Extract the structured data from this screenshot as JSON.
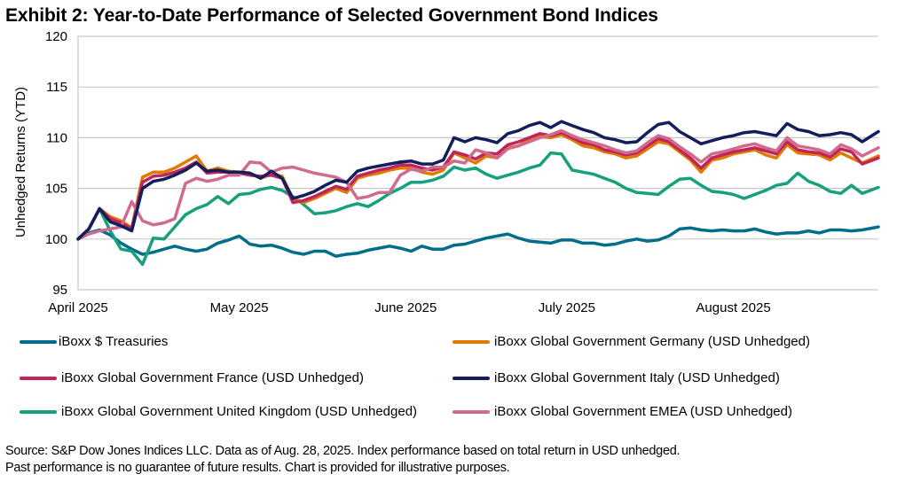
{
  "chart_data": {
    "type": "line",
    "title": "Exhibit 2: Year-to-Date Performance of Selected Government Bond Indices",
    "xlabel": "",
    "ylabel": "Unhedged Returns (YTD)",
    "ylim": [
      95,
      120
    ],
    "yticks": [
      95,
      100,
      105,
      110,
      115,
      120
    ],
    "grid": true,
    "legend_position": "bottom",
    "x_unit": "days since April 1, 2025",
    "xlim": [
      0,
      149
    ],
    "xticks": [
      {
        "day": 0,
        "label": "April 2025"
      },
      {
        "day": 30,
        "label": "May 2025"
      },
      {
        "day": 61,
        "label": "June 2025"
      },
      {
        "day": 91,
        "label": "July 2025"
      },
      {
        "day": 122,
        "label": "August 2025"
      }
    ],
    "x": [
      0,
      2,
      4,
      6,
      8,
      10,
      12,
      14,
      16,
      18,
      20,
      22,
      24,
      26,
      28,
      30,
      32,
      34,
      36,
      38,
      40,
      42,
      44,
      46,
      48,
      50,
      52,
      54,
      56,
      58,
      60,
      62,
      64,
      66,
      68,
      70,
      72,
      74,
      76,
      78,
      80,
      82,
      84,
      86,
      88,
      90,
      92,
      94,
      96,
      98,
      100,
      102,
      104,
      106,
      108,
      110,
      112,
      114,
      116,
      118,
      120,
      122,
      124,
      126,
      128,
      130,
      132,
      134,
      136,
      138,
      140,
      142,
      144,
      146,
      149
    ],
    "series": [
      {
        "name": "iBoxx $ Treasuries",
        "color": "#006E8A",
        "values": [
          100.0,
          100.6,
          100.9,
          100.4,
          99.6,
          99.0,
          98.5,
          98.7,
          99.0,
          99.3,
          99.0,
          98.8,
          99.0,
          99.6,
          99.9,
          100.3,
          99.5,
          99.3,
          99.4,
          99.1,
          98.7,
          98.5,
          98.8,
          98.8,
          98.3,
          98.5,
          98.6,
          98.9,
          99.1,
          99.3,
          99.1,
          98.8,
          99.3,
          99.0,
          99.0,
          99.4,
          99.5,
          99.8,
          100.1,
          100.3,
          100.5,
          100.1,
          99.8,
          99.7,
          99.6,
          99.9,
          99.9,
          99.6,
          99.6,
          99.4,
          99.5,
          99.8,
          100.0,
          99.8,
          99.9,
          100.3,
          101.0,
          101.1,
          100.9,
          100.8,
          100.9,
          100.8,
          100.8,
          101.0,
          100.7,
          100.5,
          100.6,
          100.6,
          100.8,
          100.6,
          100.9,
          100.9,
          100.8,
          100.9,
          101.2
        ]
      },
      {
        "name": "iBoxx Global Government Germany (USD Unhedged)",
        "color": "#E07A00",
        "values": [
          100.0,
          101.0,
          103.0,
          102.2,
          101.8,
          101.1,
          106.1,
          106.6,
          106.6,
          107.0,
          107.6,
          108.2,
          106.7,
          107.0,
          106.7,
          106.6,
          106.5,
          106.0,
          106.4,
          106.2,
          104.0,
          103.6,
          104.0,
          104.5,
          105.0,
          104.6,
          106.0,
          106.3,
          106.5,
          106.8,
          107.0,
          107.0,
          106.6,
          106.4,
          106.8,
          108.5,
          108.0,
          107.5,
          108.2,
          108.0,
          109.0,
          109.2,
          109.8,
          110.1,
          110.0,
          110.3,
          109.8,
          109.2,
          109.0,
          108.6,
          108.4,
          108.0,
          108.2,
          108.9,
          109.6,
          109.4,
          108.6,
          107.8,
          106.6,
          107.8,
          108.0,
          108.4,
          108.6,
          108.8,
          108.3,
          108.0,
          109.3,
          108.5,
          108.4,
          108.3,
          107.8,
          108.5,
          108.0,
          107.5,
          108.2
        ]
      },
      {
        "name": "iBoxx Global Government France (USD Unhedged)",
        "color": "#C0245A",
        "values": [
          100.0,
          101.0,
          103.0,
          102.0,
          101.6,
          101.0,
          105.6,
          106.2,
          106.3,
          106.6,
          107.0,
          107.6,
          106.5,
          106.6,
          106.6,
          106.5,
          106.3,
          106.2,
          106.3,
          106.0,
          103.6,
          103.8,
          104.2,
          104.7,
          105.2,
          104.9,
          106.2,
          106.5,
          106.8,
          107.0,
          107.3,
          107.3,
          107.0,
          106.8,
          107.1,
          108.6,
          108.3,
          107.9,
          108.5,
          108.4,
          109.3,
          109.6,
          110.0,
          110.4,
          110.2,
          110.5,
          110.0,
          109.5,
          109.3,
          108.8,
          108.6,
          108.3,
          108.5,
          109.2,
          109.9,
          109.6,
          108.8,
          108.0,
          107.0,
          108.0,
          108.3,
          108.6,
          108.8,
          109.0,
          108.7,
          108.4,
          109.6,
          108.8,
          108.6,
          108.5,
          108.1,
          108.9,
          108.6,
          107.4,
          108.0
        ]
      },
      {
        "name": "iBoxx Global Government Italy (USD Unhedged)",
        "color": "#131E5C",
        "values": [
          100.0,
          101.0,
          103.0,
          101.7,
          101.3,
          100.8,
          105.0,
          105.7,
          105.9,
          106.3,
          106.8,
          107.5,
          106.7,
          106.8,
          106.6,
          106.6,
          106.5,
          106.0,
          106.7,
          106.0,
          104.0,
          104.3,
          104.7,
          105.3,
          105.8,
          105.6,
          106.7,
          107.0,
          107.2,
          107.4,
          107.6,
          107.7,
          107.4,
          107.4,
          107.8,
          110.0,
          109.6,
          110.0,
          109.8,
          109.5,
          110.4,
          110.7,
          111.2,
          111.5,
          111.0,
          111.6,
          111.2,
          110.8,
          110.5,
          110.0,
          109.8,
          109.5,
          109.6,
          110.5,
          111.3,
          111.5,
          110.6,
          110.0,
          109.4,
          109.7,
          110.0,
          110.2,
          110.5,
          110.6,
          110.4,
          110.2,
          111.4,
          110.8,
          110.6,
          110.2,
          110.3,
          110.5,
          110.3,
          109.6,
          110.6
        ]
      },
      {
        "name": "iBoxx Global Government United Kingdom (USD Unhedged)",
        "color": "#16A07C",
        "values": [
          100.0,
          101.0,
          103.0,
          100.8,
          99.0,
          98.8,
          97.5,
          100.1,
          100.0,
          101.2,
          102.4,
          103.0,
          103.4,
          104.2,
          103.5,
          104.4,
          104.5,
          104.9,
          105.1,
          104.8,
          104.2,
          103.4,
          102.5,
          102.6,
          102.8,
          103.2,
          103.5,
          103.2,
          103.8,
          104.5,
          105.0,
          105.6,
          105.6,
          105.8,
          106.2,
          107.1,
          106.8,
          107.0,
          106.4,
          106.0,
          106.3,
          106.6,
          107.0,
          107.3,
          108.5,
          108.4,
          106.8,
          106.6,
          106.4,
          106.0,
          105.6,
          105.0,
          104.6,
          104.5,
          104.4,
          105.2,
          105.9,
          106.0,
          105.3,
          104.7,
          104.6,
          104.4,
          104.0,
          104.4,
          104.8,
          105.3,
          105.5,
          106.5,
          105.7,
          105.3,
          104.7,
          104.5,
          105.3,
          104.5,
          105.1
        ]
      },
      {
        "name": "iBoxx Global Government EMEA (USD Unhedged)",
        "color": "#D06A8E",
        "values": [
          100.0,
          100.5,
          100.8,
          101.0,
          101.2,
          103.7,
          101.8,
          101.4,
          101.6,
          102.0,
          105.5,
          106.0,
          105.7,
          105.9,
          106.3,
          106.3,
          107.6,
          107.5,
          106.6,
          107.0,
          107.1,
          106.8,
          106.5,
          106.3,
          106.1,
          105.6,
          104.0,
          104.2,
          104.6,
          104.6,
          106.3,
          106.9,
          106.7,
          107.1,
          107.1,
          107.7,
          107.5,
          108.8,
          108.5,
          108.0,
          108.9,
          109.2,
          109.6,
          110.0,
          110.3,
          110.7,
          110.2,
          109.8,
          109.5,
          109.2,
          108.8,
          108.5,
          108.7,
          109.5,
          110.2,
          109.9,
          109.1,
          108.4,
          107.6,
          108.4,
          108.6,
          108.9,
          109.2,
          109.4,
          109.0,
          108.7,
          110.0,
          109.2,
          109.0,
          108.8,
          108.4,
          109.3,
          108.9,
          108.2,
          109.0
        ]
      }
    ]
  },
  "legend": [
    {
      "label": "iBoxx $ Treasuries",
      "color": "#006E8A"
    },
    {
      "label": "iBoxx Global Government Germany (USD Unhedged)",
      "color": "#E07A00"
    },
    {
      "label": "iBoxx Global Government France (USD Unhedged)",
      "color": "#C0245A"
    },
    {
      "label": "iBoxx Global Government Italy (USD Unhedged)",
      "color": "#131E5C"
    },
    {
      "label": "iBoxx Global Government United Kingdom (USD Unhedged)",
      "color": "#16A07C"
    },
    {
      "label": "iBoxx Global Government EMEA (USD Unhedged)",
      "color": "#D06A8E"
    }
  ],
  "source": {
    "line1": "Source: S&P Dow Jones Indices LLC. Data as of Aug. 28, 2025. Index performance based on total return in USD unhedged.",
    "line2": "Past performance is no guarantee of future results. Chart is provided for illustrative purposes."
  }
}
